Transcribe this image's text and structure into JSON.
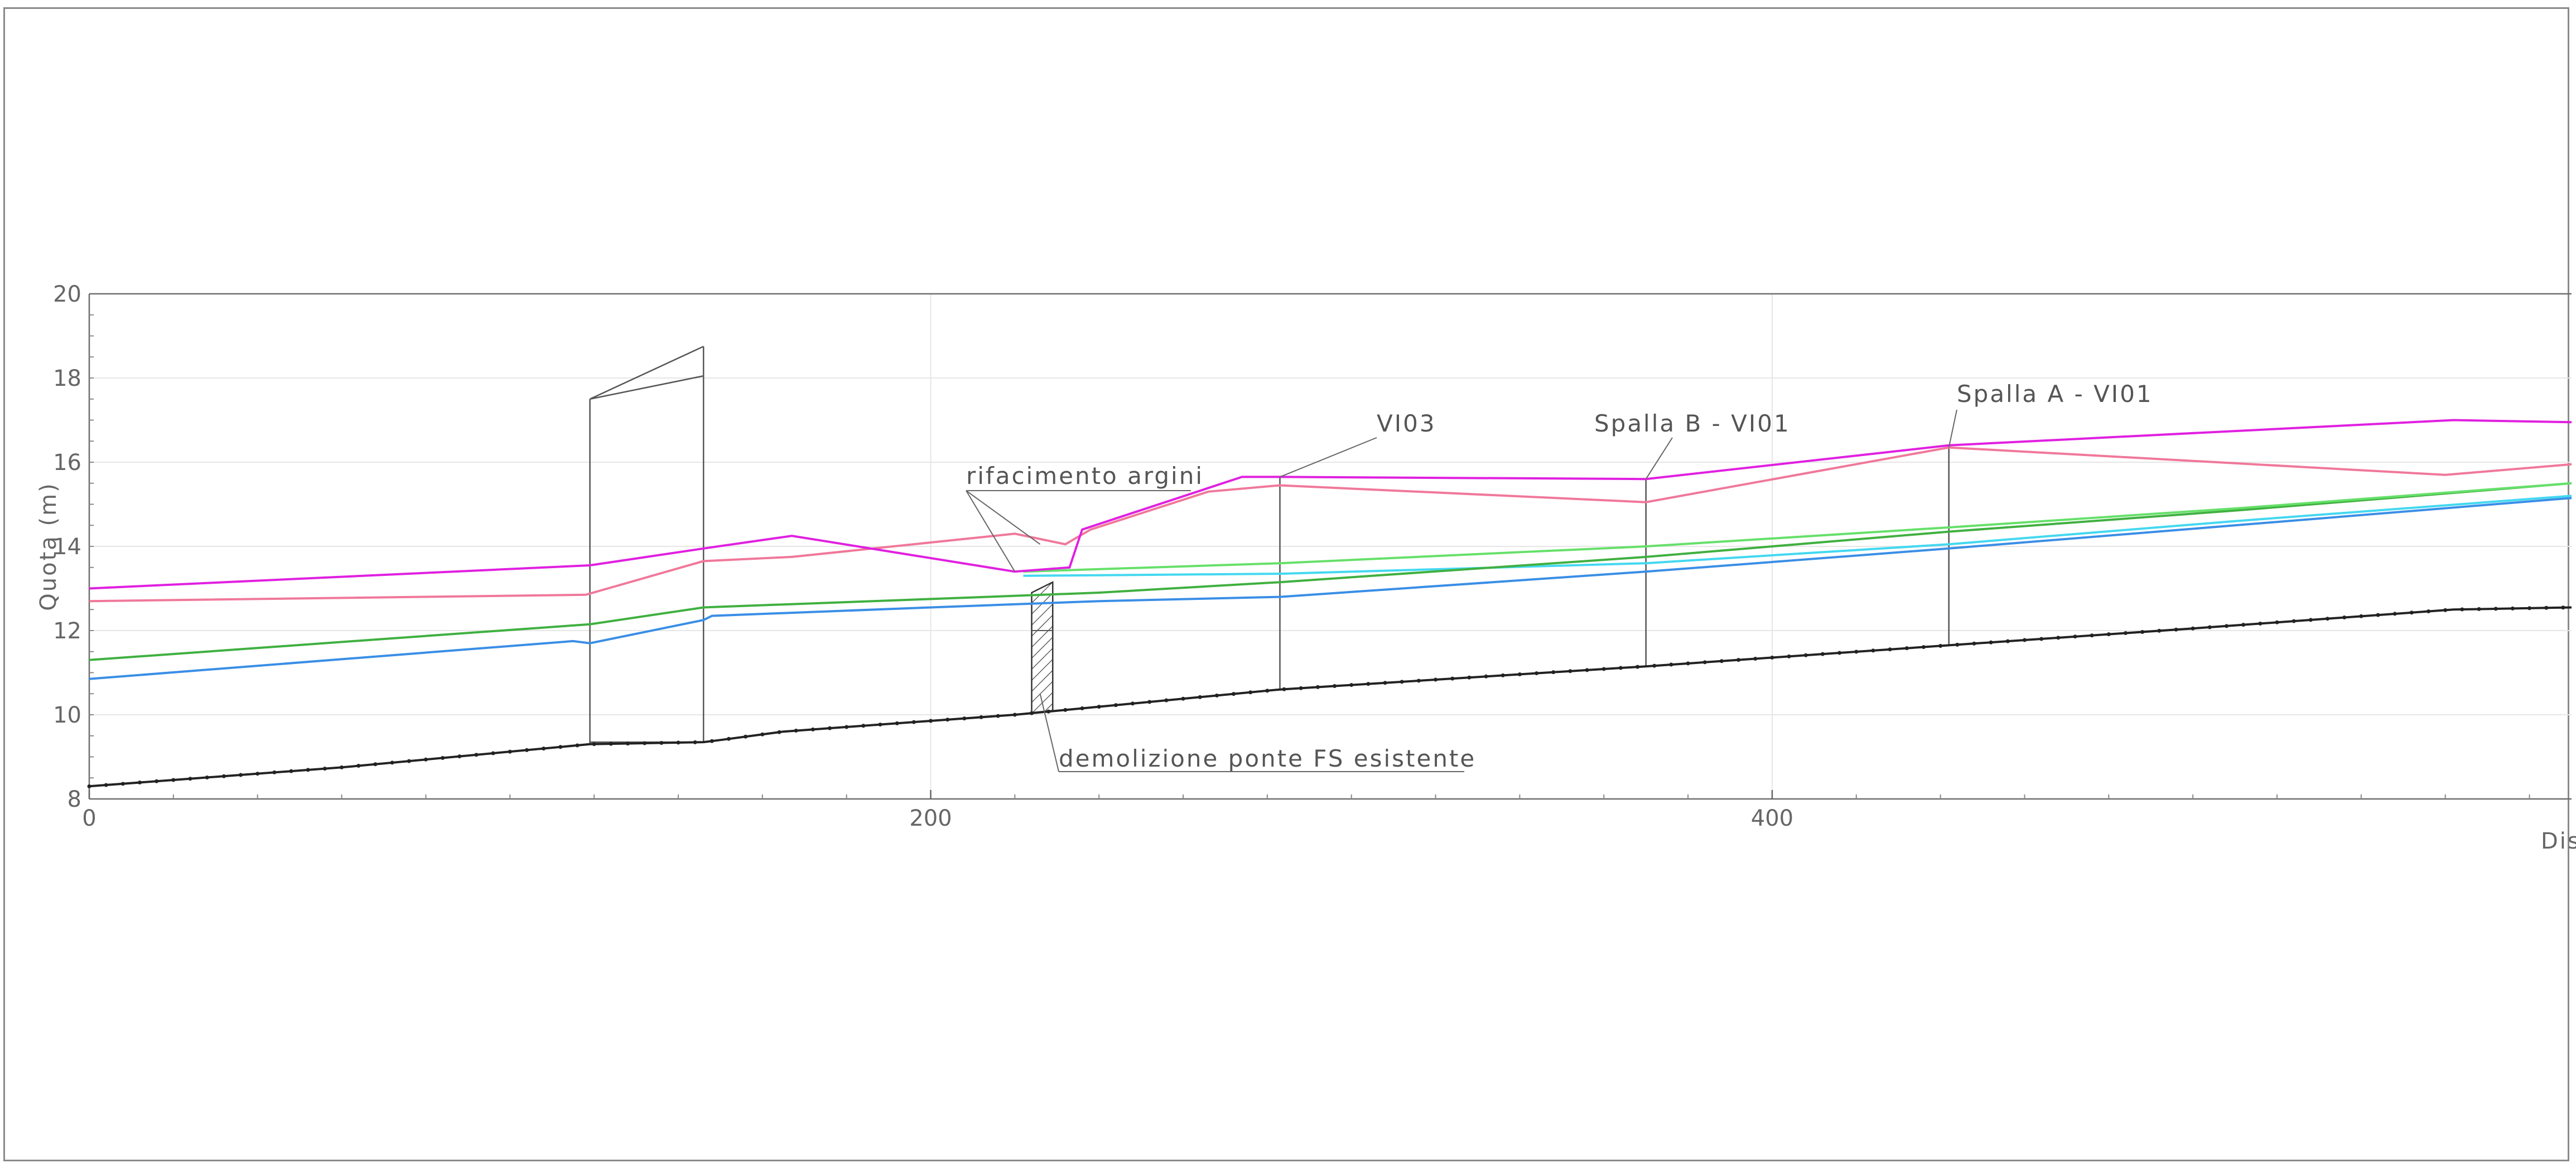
{
  "chart_data": {
    "type": "line",
    "title": "",
    "xlabel": "Dis",
    "ylabel": "Quota (m)",
    "xlim": [
      0,
      590
    ],
    "ylim": [
      8,
      20
    ],
    "xticks": [
      0,
      200,
      400
    ],
    "yticks": [
      8,
      10,
      12,
      14,
      16,
      18,
      20
    ],
    "grid": true,
    "series": [
      {
        "key": "fondo",
        "color": "#222222",
        "points": [
          [
            0,
            8.3
          ],
          [
            60,
            8.75
          ],
          [
            119,
            9.3
          ],
          [
            146,
            9.35
          ],
          [
            150,
            9.4
          ],
          [
            165,
            9.6
          ],
          [
            220,
            10.0
          ],
          [
            283,
            10.6
          ],
          [
            370,
            11.15
          ],
          [
            442,
            11.65
          ],
          [
            500,
            12.05
          ],
          [
            562,
            12.5
          ],
          [
            590,
            12.55
          ]
        ]
      },
      {
        "key": "blu",
        "color": "#3a8ee6",
        "points": [
          [
            0,
            10.85
          ],
          [
            115,
            11.75
          ],
          [
            119,
            11.7
          ],
          [
            146,
            12.25
          ],
          [
            148,
            12.35
          ],
          [
            200,
            12.55
          ],
          [
            240,
            12.7
          ],
          [
            283,
            12.8
          ],
          [
            370,
            13.4
          ],
          [
            442,
            13.95
          ],
          [
            510,
            14.5
          ],
          [
            590,
            15.15
          ]
        ]
      },
      {
        "key": "ciano",
        "color": "#44d8f0",
        "points": [
          [
            222,
            13.3
          ],
          [
            283,
            13.35
          ],
          [
            370,
            13.6
          ],
          [
            442,
            14.05
          ],
          [
            510,
            14.6
          ],
          [
            590,
            15.2
          ]
        ]
      },
      {
        "key": "verde",
        "color": "#40b040",
        "points": [
          [
            0,
            11.3
          ],
          [
            119,
            12.15
          ],
          [
            146,
            12.55
          ],
          [
            200,
            12.75
          ],
          [
            240,
            12.9
          ],
          [
            283,
            13.15
          ],
          [
            370,
            13.75
          ],
          [
            442,
            14.35
          ],
          [
            510,
            14.85
          ],
          [
            590,
            15.5
          ]
        ]
      },
      {
        "key": "verde-chiaro",
        "color": "#66e06a",
        "points": [
          [
            222,
            13.4
          ],
          [
            283,
            13.6
          ],
          [
            370,
            14.0
          ],
          [
            442,
            14.45
          ],
          [
            510,
            14.9
          ],
          [
            590,
            15.5
          ]
        ]
      },
      {
        "key": "rosa",
        "color": "#f0789a",
        "points": [
          [
            0,
            12.7
          ],
          [
            118,
            12.85
          ],
          [
            146,
            13.65
          ],
          [
            167,
            13.75
          ],
          [
            220,
            14.3
          ],
          [
            232,
            14.05
          ],
          [
            238,
            14.4
          ],
          [
            266,
            15.3
          ],
          [
            283,
            15.45
          ],
          [
            370,
            15.05
          ],
          [
            442,
            16.35
          ],
          [
            560,
            15.7
          ],
          [
            590,
            15.95
          ]
        ]
      },
      {
        "key": "magenta",
        "color": "#e020e0",
        "points": [
          [
            0,
            13.0
          ],
          [
            119,
            13.55
          ],
          [
            146,
            13.95
          ],
          [
            167,
            14.25
          ],
          [
            220,
            13.4
          ],
          [
            233,
            13.5
          ],
          [
            236,
            14.4
          ],
          [
            274,
            15.65
          ],
          [
            283,
            15.65
          ],
          [
            370,
            15.6
          ],
          [
            442,
            16.4
          ],
          [
            562,
            17.0
          ],
          [
            590,
            16.95
          ]
        ]
      }
    ],
    "annotations": [
      {
        "key": "vi03",
        "text": "VI03"
      },
      {
        "key": "spalla-b",
        "text": "Spalla B - VI01"
      },
      {
        "key": "spalla-a",
        "text": "Spalla A - VI01"
      },
      {
        "key": "argini",
        "text": "rifacimento argini"
      },
      {
        "key": "ponte",
        "text": "demolizione ponte FS esistente"
      }
    ]
  }
}
